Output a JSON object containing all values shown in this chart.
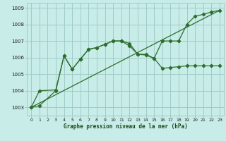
{
  "xlabel": "Graphe pression niveau de la mer (hPa)",
  "background_color": "#c8ece8",
  "grid_color": "#a0ccc8",
  "line_color": "#2d6e2d",
  "xlim": [
    -0.5,
    23.5
  ],
  "ylim": [
    1002.5,
    1009.3
  ],
  "yticks": [
    1003,
    1004,
    1005,
    1006,
    1007,
    1008,
    1009
  ],
  "xticks": [
    0,
    1,
    2,
    3,
    4,
    5,
    6,
    7,
    8,
    9,
    10,
    11,
    12,
    13,
    14,
    15,
    16,
    17,
    18,
    19,
    20,
    21,
    22,
    23
  ],
  "line1_x": [
    0,
    1,
    3,
    4,
    5,
    6,
    7,
    8,
    9,
    10,
    11,
    12,
    13,
    14,
    15,
    16,
    17,
    18,
    19,
    20,
    21,
    22,
    23
  ],
  "line1_y": [
    1003.0,
    1003.1,
    1004.0,
    1006.1,
    1005.3,
    1005.9,
    1006.5,
    1006.6,
    1006.8,
    1007.0,
    1007.0,
    1006.85,
    1006.2,
    1006.15,
    1005.95,
    1005.35,
    1005.4,
    1005.45,
    1005.5,
    1005.5,
    1005.5,
    1005.5,
    1005.5
  ],
  "line2_x": [
    0,
    1,
    3,
    4,
    5,
    6,
    7,
    8,
    9,
    10,
    11,
    12,
    13,
    14,
    15,
    16,
    17,
    18,
    19,
    20,
    21,
    22,
    23
  ],
  "line2_y": [
    1003.0,
    1004.0,
    1004.05,
    1006.1,
    1005.3,
    1005.9,
    1006.5,
    1006.6,
    1006.8,
    1007.0,
    1007.0,
    1006.7,
    1006.2,
    1006.2,
    1005.95,
    1007.0,
    1007.0,
    1007.0,
    1008.0,
    1008.5,
    1008.6,
    1008.75,
    1008.85
  ],
  "line3_x": [
    0,
    23
  ],
  "line3_y": [
    1003.0,
    1008.85
  ]
}
